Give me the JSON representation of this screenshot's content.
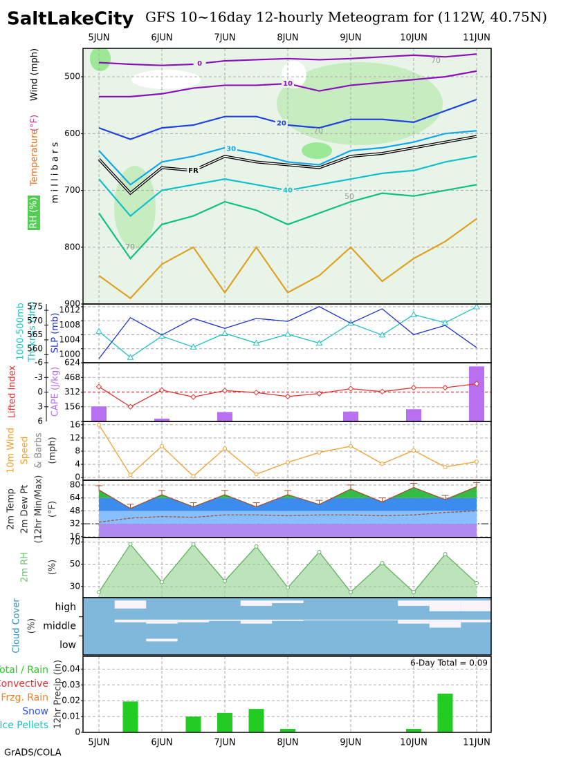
{
  "header": {
    "station": "SaltLakeCity",
    "title": "GFS 10~16day 12-hourly Meteogram for (112W, 40.75N)"
  },
  "footer": "GrADS/COLA",
  "chart_data": [
    {
      "type": "contour",
      "categories": [
        "5JUN",
        null,
        "6JUN",
        null,
        "7JUN",
        null,
        "8JUN",
        null,
        "9JUN",
        null,
        "10JUN",
        null,
        "11JUN"
      ],
      "ylabels": [
        "Temperature",
        "(°F)",
        "Wind (mph)",
        "m i l l i b a r s",
        "RH (%)"
      ],
      "ylim": [
        450,
        900
      ],
      "yinvert": true,
      "yticks": [
        500,
        600,
        700,
        800,
        900
      ],
      "grid": true,
      "series": [
        {
          "name": "0",
          "color": "#8a10b8",
          "values": [
            475,
            478,
            480,
            478,
            472,
            470,
            468,
            470,
            468,
            465,
            462,
            465,
            460
          ]
        },
        {
          "name": "10",
          "color": "#8a10b8",
          "values": [
            535,
            535,
            530,
            520,
            515,
            515,
            512,
            525,
            515,
            510,
            505,
            500,
            490
          ]
        },
        {
          "name": "20",
          "color": "#2040e0",
          "values": [
            590,
            610,
            590,
            585,
            570,
            570,
            585,
            590,
            575,
            575,
            580,
            560,
            540
          ]
        },
        {
          "name": "30",
          "color": "#10a8e8",
          "values": [
            630,
            690,
            650,
            640,
            625,
            635,
            650,
            655,
            630,
            625,
            615,
            600,
            595
          ]
        },
        {
          "name": "FR",
          "color": "#000000",
          "double": true,
          "values": [
            645,
            705,
            660,
            665,
            640,
            650,
            655,
            660,
            640,
            635,
            625,
            615,
            605
          ]
        },
        {
          "name": "40",
          "color": "#10c0c8",
          "values": [
            680,
            745,
            700,
            690,
            680,
            690,
            700,
            690,
            680,
            670,
            665,
            650,
            640
          ]
        },
        {
          "color": "#10c080",
          "values": [
            740,
            820,
            760,
            745,
            720,
            735,
            760,
            740,
            720,
            705,
            710,
            700,
            690
          ]
        },
        {
          "color": "#e0a020",
          "values": [
            850,
            890,
            830,
            800,
            880,
            800,
            880,
            850,
            800,
            860,
            820,
            790,
            750
          ]
        }
      ],
      "rh_labels": [
        "70",
        "70",
        "50",
        "70"
      ]
    },
    {
      "type": "line",
      "ylabels": [
        "1000-500mb",
        "Thcknss (dm)",
        "SLP (mb)"
      ],
      "ylim": [
        555,
        576
      ],
      "yticks": [
        560,
        565,
        570,
        575
      ],
      "y2lim": [
        997.8,
        1013.7
      ],
      "y2ticks": [
        1000,
        1004,
        1008,
        1012
      ],
      "grid": true,
      "series": [
        {
          "color": "#20c0c0",
          "marker": "triangle",
          "values": [
            566.2,
            556.9,
            564.5,
            560.6,
            565.5,
            562,
            565.2,
            562,
            569.1,
            564.9,
            572.2,
            569.3,
            575
          ]
        },
        {
          "color": "#2030d0",
          "axis": "y2",
          "values": [
            998.9,
            1010,
            1005.3,
            1009.8,
            1007.1,
            1009.8,
            1009,
            1013,
            1008.5,
            1012.4,
            1005.4,
            1007.9,
            1001.9
          ]
        }
      ]
    },
    {
      "type": "line",
      "ylabels": [
        "Lifted Index",
        "CAPE (J/kg)"
      ],
      "ylim": [
        -6,
        6
      ],
      "yinvert": true,
      "yticks": [
        -6,
        -3,
        0,
        3,
        6
      ],
      "y2lim": [
        0,
        624
      ],
      "y2ticks": [
        156,
        312,
        468,
        624
      ],
      "grid": true,
      "reference_line": 0,
      "series": [
        {
          "color": "#b870f0",
          "axis": "y2",
          "kind": "bar",
          "values": [
            160,
            0,
            30,
            0,
            100,
            0,
            0,
            0,
            105,
            0,
            130,
            0,
            585
          ]
        },
        {
          "color": "#e03030",
          "marker": "diamond",
          "values": [
            -1.1,
            3,
            -0.4,
            1,
            -0.3,
            0.1,
            0.9,
            0.3,
            -0.7,
            -0.1,
            -0.9,
            -0.9,
            -1.7
          ]
        }
      ]
    },
    {
      "type": "line",
      "ylabels": [
        "10m Wind",
        "Speed",
        "& Barbs",
        "(mph)"
      ],
      "ylim": [
        -0.8,
        17
      ],
      "yticks": [
        0,
        4,
        8,
        12,
        16
      ],
      "grid": true,
      "series": [
        {
          "color": "#f0a030",
          "marker": "circle",
          "values": [
            16,
            0.8,
            9.5,
            0.4,
            8.8,
            1,
            4.6,
            7.6,
            9.5,
            4.2,
            8.2,
            3.2,
            4.8
          ]
        }
      ]
    },
    {
      "type": "line",
      "ylabels": [
        "2m Temp",
        "2m Dew Pt",
        "(12hr Min/Max)",
        "(°F)"
      ],
      "ylim": [
        15,
        86
      ],
      "yticks": [
        16,
        32,
        48,
        64,
        80
      ],
      "grid": true,
      "reference_line": 32,
      "series": [
        {
          "color": "#a05030",
          "marker": "cap",
          "fill": true,
          "values": [
            74,
            51,
            68,
            53,
            68,
            53,
            68,
            56,
            75,
            59,
            77,
            62,
            78
          ]
        },
        {
          "color": "#a05030",
          "dashed": true,
          "values": [
            34,
            39,
            41,
            40,
            43,
            43,
            42,
            43,
            43,
            42,
            43,
            46,
            48
          ]
        }
      ]
    },
    {
      "type": "line",
      "ylabels": [
        "2m RH",
        "(%)"
      ],
      "ylim": [
        20,
        74
      ],
      "yticks": [
        30,
        50,
        70
      ],
      "grid": true,
      "series": [
        {
          "color": "#60b060",
          "marker": "circle",
          "kind": "area",
          "values": [
            25,
            68,
            34,
            68,
            35,
            66,
            29,
            61,
            25,
            51,
            25,
            59,
            33
          ]
        }
      ]
    },
    {
      "type": "cloud",
      "ylabels": [
        "Cloud Cover",
        "(%)"
      ],
      "series": [
        {
          "name": "high",
          "values": [
            100,
            40,
            100,
            100,
            100,
            60,
            80,
            100,
            100,
            100,
            60,
            20,
            20
          ]
        },
        {
          "name": "middle",
          "values": [
            100,
            80,
            70,
            80,
            90,
            70,
            90,
            95,
            95,
            95,
            70,
            40,
            80
          ]
        },
        {
          "name": "low",
          "values": [
            100,
            100,
            80,
            100,
            100,
            100,
            100,
            100,
            100,
            100,
            100,
            100,
            100
          ]
        }
      ]
    },
    {
      "type": "bar",
      "ylabels": [
        "12hr Precip (in)"
      ],
      "annotation": "6-Day Total = 0.09",
      "ylim": [
        0,
        0.048
      ],
      "yticks": [
        0,
        0.01,
        0.02,
        0.03,
        0.04
      ],
      "grid": true,
      "legend": [
        {
          "name": "Total / Rain",
          "color": "#22cc22"
        },
        {
          "name": "Convective",
          "color": "#e03030"
        },
        {
          "name": "Frzg. Rain",
          "color": "#f08020"
        },
        {
          "name": "Snow",
          "color": "#3050f0"
        },
        {
          "name": "Ice Pellets",
          "color": "#20c0c0"
        }
      ],
      "series": [
        {
          "color": "#22cc22",
          "values": [
            0,
            0.0195,
            0,
            0.01,
            0.0123,
            0.0148,
            0.0022,
            0,
            0,
            0,
            0.0022,
            0.0245,
            0
          ]
        }
      ]
    }
  ]
}
